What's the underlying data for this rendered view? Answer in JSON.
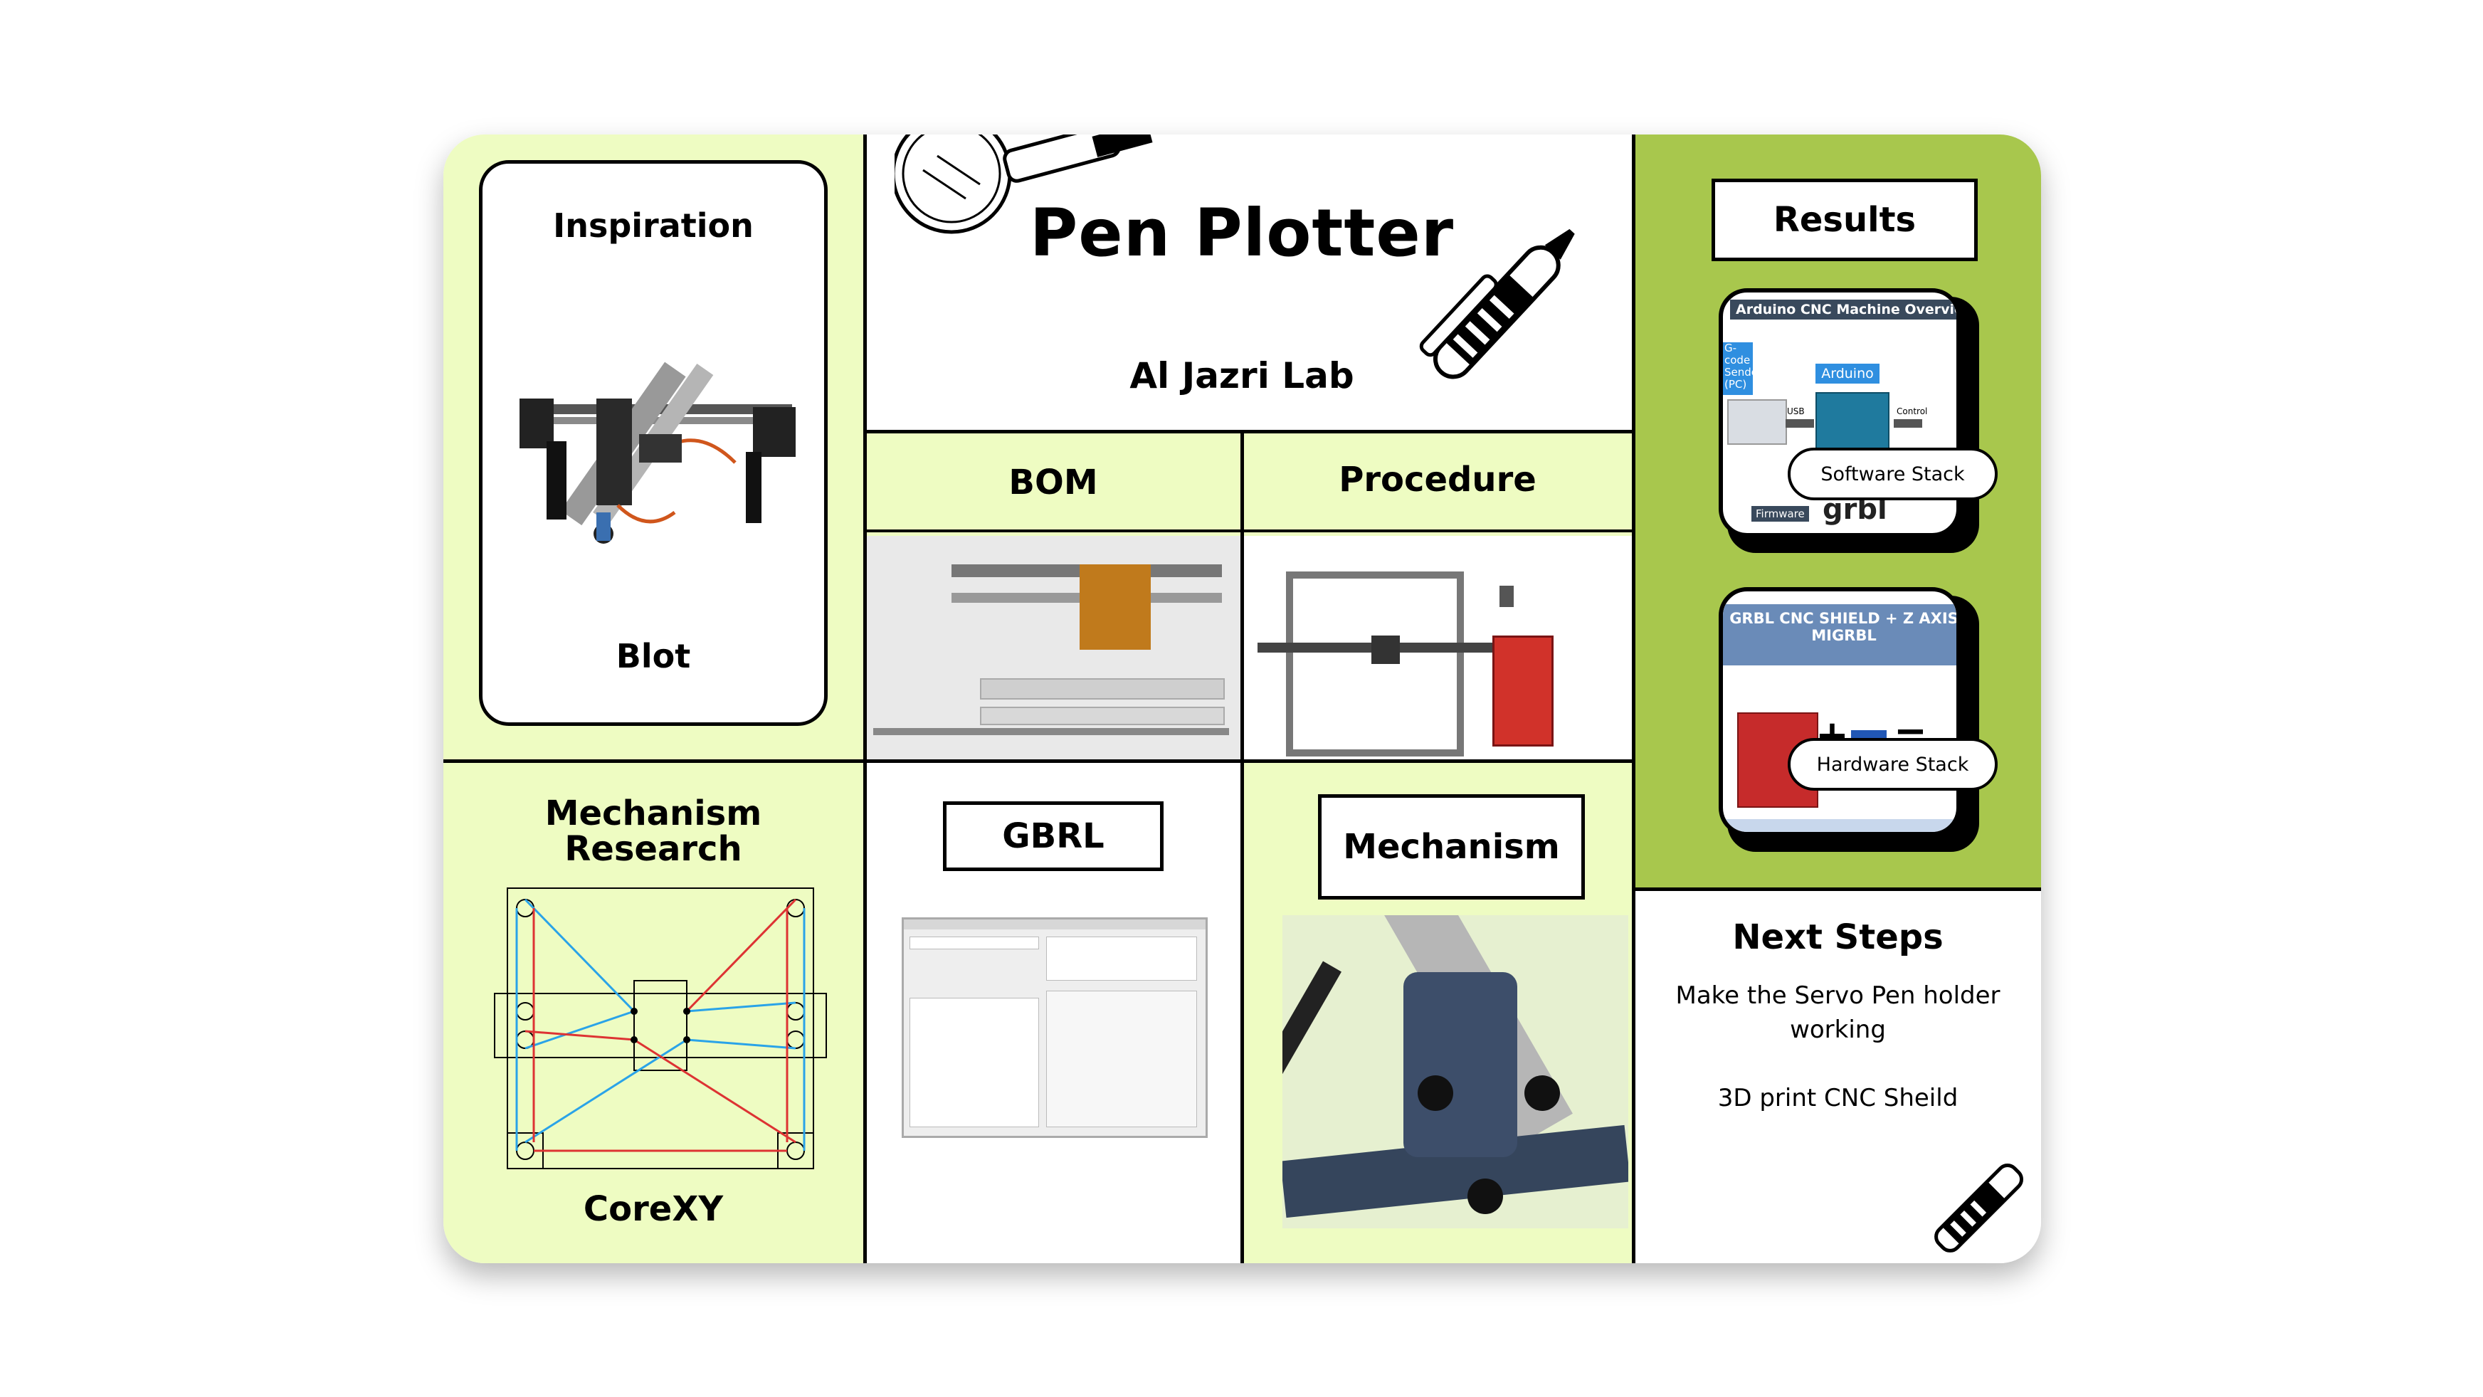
{
  "title": "Pen Plotter",
  "subtitle": "Al Jazri Lab",
  "inspiration": {
    "heading": "Inspiration",
    "caption": "Blot"
  },
  "bom": {
    "heading": "BOM"
  },
  "procedure": {
    "heading": "Procedure"
  },
  "mechanism_research": {
    "heading_line1": "Mechanism",
    "heading_line2": "Research",
    "caption": "CoreXY"
  },
  "gbrl": {
    "heading": "GBRL"
  },
  "mechanism": {
    "heading": "Mechanism"
  },
  "results": {
    "heading": "Results",
    "software_card": {
      "pill": "Software Stack",
      "banner": "Arduino CNC Machine Overview",
      "gcode_label_1": "G-code",
      "gcode_label_2": "Sender",
      "gcode_label_3": "(PC)",
      "arduino_label": "Arduino",
      "usb_label": "USB",
      "control_label": "Control",
      "firmware_label": "Firmware",
      "grbl_label": "grbl"
    },
    "hardware_card": {
      "pill": "Hardware Stack",
      "banner_line1": "GRBL CNC SHIELD + Z AXIS",
      "banner_line2": "MIGRBL",
      "plus": "+",
      "equals": "="
    }
  },
  "next_steps": {
    "heading": "Next Steps",
    "line1": "Make the Servo Pen holder",
    "line2": "working",
    "line3": "3D print CNC Sheild"
  },
  "colors": {
    "lime": "#eefcc2",
    "green": "#a8c74d",
    "black": "#000000",
    "white": "#ffffff"
  }
}
